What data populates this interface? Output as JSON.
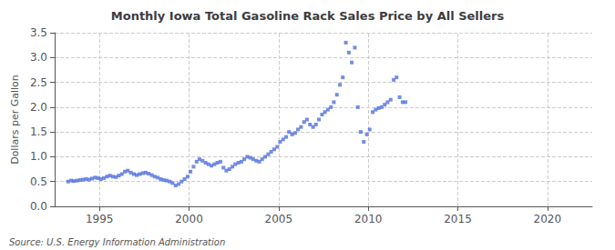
{
  "chart_data": {
    "type": "scatter",
    "title": "Monthly Iowa Total Gasoline Rack Sales Price by All Sellers",
    "ylabel": "Dollars per Gallon",
    "annotation": "Source: U.S. Energy Information Administration",
    "marker": "square",
    "grid": true,
    "xlim": [
      1992.5,
      2022.5
    ],
    "xticks": [
      1995,
      2000,
      2005,
      2010,
      2015,
      2020
    ],
    "ylim": [
      0.0,
      3.5
    ],
    "yticks": [
      {
        "value": 0.0,
        "label": "0.0"
      },
      0.5,
      {
        "value": 1.0,
        "label": "1.0"
      },
      1.5,
      {
        "value": 2.0,
        "label": "2.0"
      },
      2.5,
      {
        "value": 3.0,
        "label": "3.0"
      },
      3.5
    ],
    "x": [
      1993.25,
      1993.42,
      1993.58,
      1993.75,
      1993.92,
      1994.08,
      1994.25,
      1994.42,
      1994.58,
      1994.75,
      1994.92,
      1995.08,
      1995.25,
      1995.42,
      1995.58,
      1995.75,
      1995.92,
      1996.08,
      1996.25,
      1996.42,
      1996.58,
      1996.75,
      1996.92,
      1997.08,
      1997.25,
      1997.42,
      1997.58,
      1997.75,
      1997.92,
      1998.08,
      1998.25,
      1998.42,
      1998.58,
      1998.75,
      1998.92,
      1999.08,
      1999.25,
      1999.42,
      1999.58,
      1999.75,
      1999.92,
      2000.08,
      2000.25,
      2000.42,
      2000.58,
      2000.75,
      2000.92,
      2001.08,
      2001.25,
      2001.42,
      2001.58,
      2001.75,
      2001.92,
      2002.08,
      2002.25,
      2002.42,
      2002.58,
      2002.75,
      2002.92,
      2003.08,
      2003.25,
      2003.42,
      2003.58,
      2003.75,
      2003.92,
      2004.08,
      2004.25,
      2004.42,
      2004.58,
      2004.75,
      2004.92,
      2005.08,
      2005.25,
      2005.42,
      2005.58,
      2005.75,
      2005.92,
      2006.08,
      2006.25,
      2006.42,
      2006.58,
      2006.75,
      2006.92,
      2007.08,
      2007.25,
      2007.42,
      2007.58,
      2007.75,
      2007.92,
      2008.08,
      2008.25,
      2008.42,
      2008.58,
      2008.75,
      2008.92,
      2009.08,
      2009.25,
      2009.42,
      2009.58,
      2009.75,
      2009.92,
      2010.08,
      2010.25,
      2010.42,
      2010.58,
      2010.75,
      2010.92,
      2011.08,
      2011.25,
      2011.42,
      2011.58,
      2011.75,
      2011.92,
      2012.08
    ],
    "values": [
      0.5,
      0.52,
      0.51,
      0.52,
      0.53,
      0.54,
      0.55,
      0.54,
      0.56,
      0.58,
      0.57,
      0.55,
      0.57,
      0.6,
      0.62,
      0.6,
      0.59,
      0.62,
      0.65,
      0.7,
      0.72,
      0.68,
      0.65,
      0.63,
      0.65,
      0.67,
      0.68,
      0.66,
      0.63,
      0.6,
      0.58,
      0.55,
      0.53,
      0.52,
      0.5,
      0.47,
      0.42,
      0.45,
      0.5,
      0.55,
      0.6,
      0.7,
      0.8,
      0.9,
      0.95,
      0.92,
      0.88,
      0.85,
      0.82,
      0.85,
      0.88,
      0.9,
      0.78,
      0.72,
      0.75,
      0.8,
      0.85,
      0.88,
      0.9,
      0.95,
      1.0,
      0.98,
      0.95,
      0.92,
      0.9,
      0.95,
      1.0,
      1.05,
      1.1,
      1.15,
      1.2,
      1.3,
      1.35,
      1.4,
      1.5,
      1.45,
      1.48,
      1.55,
      1.6,
      1.7,
      1.75,
      1.65,
      1.6,
      1.65,
      1.75,
      1.85,
      1.9,
      1.95,
      2.0,
      2.1,
      2.25,
      2.45,
      2.6,
      3.3,
      3.1,
      2.9,
      3.2,
      2.0,
      1.5,
      1.3,
      1.45,
      1.55,
      1.9,
      1.95,
      1.98,
      2.0,
      2.05,
      2.1,
      2.15,
      2.55,
      2.6,
      2.2,
      2.1,
      2.1
    ]
  }
}
